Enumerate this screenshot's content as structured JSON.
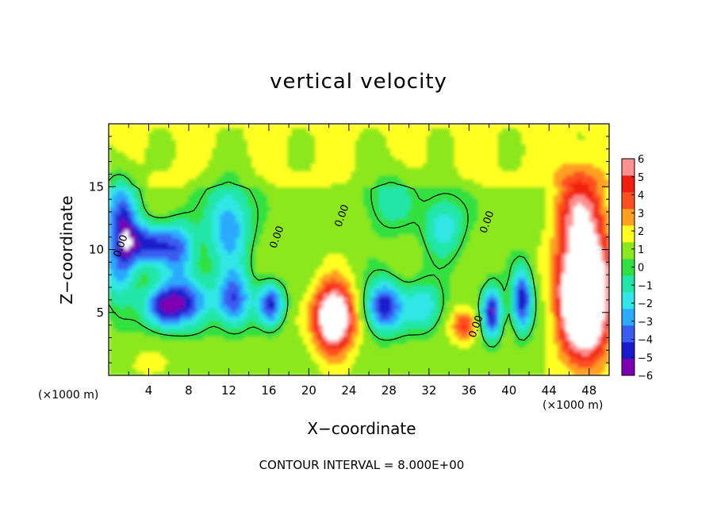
{
  "chart_data": {
    "type": "heatmap",
    "title": "vertical velocity",
    "xlabel": "X−coordinate",
    "ylabel": "Z−coordinate",
    "x_scale_note": "(×1000 m)",
    "x_scale_note_right": "(×1000 m)",
    "footer": "CONTOUR INTERVAL = 8.000E+00",
    "xlim": [
      0,
      50
    ],
    "ylim": [
      0,
      20
    ],
    "x_ticks": [
      "4",
      "8",
      "12",
      "16",
      "20",
      "24",
      "28",
      "32",
      "36",
      "40",
      "44",
      "48"
    ],
    "y_ticks": [
      "5",
      "10",
      "15"
    ],
    "colorbar": {
      "range": [
        -6,
        6
      ],
      "labels": [
        "6",
        "5",
        "4",
        "3",
        "2",
        "1",
        "0",
        "−1",
        "−2",
        "−3",
        "−4",
        "−5",
        "−6"
      ],
      "colors": [
        "#7f00b0",
        "#1a1acc",
        "#3a5cf0",
        "#2aaaff",
        "#30e6e6",
        "#20e6a8",
        "#30e040",
        "#8ce81e",
        "#ffff20",
        "#ffa020",
        "#ff5020",
        "#f02010",
        "#ff9090"
      ]
    },
    "contour_labels": [
      {
        "text": "0.00",
        "x": 1.5,
        "z": 10.2
      },
      {
        "text": "0.00",
        "x": 17.1,
        "z": 10.9
      },
      {
        "text": "0.00",
        "x": 23.6,
        "z": 12.6
      },
      {
        "text": "0.00",
        "x": 38.1,
        "z": 12.1
      },
      {
        "text": "0.00",
        "x": 37.0,
        "z": 3.8
      }
    ],
    "features": [
      {
        "w": -7.5,
        "x": 1.0,
        "z": 11,
        "sx": 1.8,
        "sz": 4
      },
      {
        "w": -4.8,
        "x": 4.0,
        "z": 10.5,
        "sx": 2.2,
        "sz": 1.6
      },
      {
        "w": -5.5,
        "x": 5.5,
        "z": 5.5,
        "sx": 2.0,
        "sz": 1.7
      },
      {
        "w": -4.2,
        "x": 8.0,
        "z": 6.0,
        "sx": 2.2,
        "sz": 2.0
      },
      {
        "w": -4.0,
        "x": 7.0,
        "z": 10.0,
        "sx": 1.8,
        "sz": 2.2
      },
      {
        "w": -5.0,
        "x": 12.5,
        "z": 6.0,
        "sx": 1.7,
        "sz": 2.2
      },
      {
        "w": -4.0,
        "x": 12.0,
        "z": 12.0,
        "sx": 2.2,
        "sz": 3.5
      },
      {
        "w": -5.2,
        "x": 16.2,
        "z": 5.7,
        "sx": 1.3,
        "sz": 1.6
      },
      {
        "w": 8.5,
        "x": 22.5,
        "z": 4.6,
        "sx": 1.9,
        "sz": 2.6
      },
      {
        "w": -5.8,
        "x": 27.5,
        "z": 5.5,
        "sx": 1.8,
        "sz": 2.0
      },
      {
        "w": -3.0,
        "x": 31.5,
        "z": 5.5,
        "sx": 2.0,
        "sz": 2.0
      },
      {
        "w": -3.0,
        "x": 33.5,
        "z": 12.0,
        "sx": 2.0,
        "sz": 2.5
      },
      {
        "w": 3.5,
        "x": 35.5,
        "z": 4.0,
        "sx": 1.3,
        "sz": 1.3
      },
      {
        "w": -6.0,
        "x": 38.3,
        "z": 5.0,
        "sx": 1.0,
        "sz": 2.0
      },
      {
        "w": -6.0,
        "x": 41.3,
        "z": 6.0,
        "sx": 1.0,
        "sz": 2.4
      },
      {
        "w": 12.0,
        "x": 47.5,
        "z": 6.5,
        "sx": 2.4,
        "sz": 4.8
      },
      {
        "w": 3.5,
        "x": 47.0,
        "z": 13.5,
        "sx": 2.6,
        "sz": 3.0
      },
      {
        "w": 3.0,
        "x": 0.5,
        "z": 11.0,
        "sx": 0.9,
        "sz": 2.5
      },
      {
        "w": 1.5,
        "x": 4.5,
        "z": 1.0,
        "sx": 1.5,
        "sz": 1.0
      },
      {
        "w": -2.0,
        "x": 28.0,
        "z": 14.0,
        "sx": 2.5,
        "sz": 2.5
      }
    ]
  }
}
